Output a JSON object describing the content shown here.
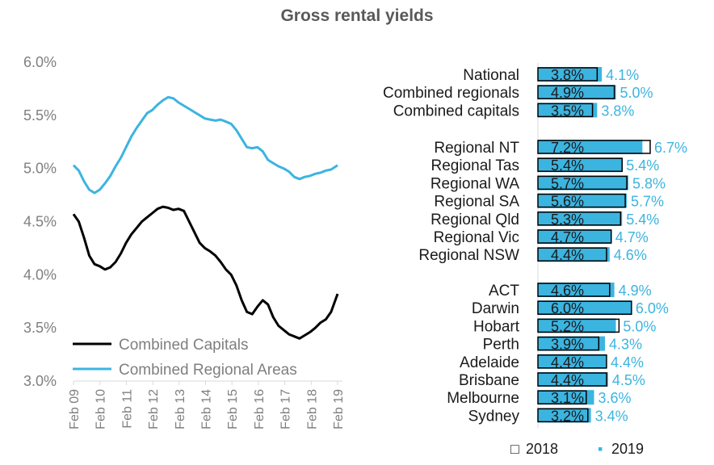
{
  "title": "Gross rental yields",
  "chart_data": [
    {
      "type": "line",
      "y_ticks": [
        "6.0%",
        "5.5%",
        "5.0%",
        "4.5%",
        "4.0%",
        "3.5%",
        "3.0%"
      ],
      "ylim": [
        3.0,
        6.0
      ],
      "x_ticks": [
        "Feb 09",
        "Feb 10",
        "Feb 11",
        "Feb 12",
        "Feb 13",
        "Feb 14",
        "Feb 15",
        "Feb 16",
        "Feb 17",
        "Feb 18",
        "Feb 19"
      ],
      "xlim": [
        2009.0,
        2019.05
      ],
      "colors": {
        "capitals": "#000000",
        "regional": "#3cb4e0"
      },
      "series": [
        {
          "name": "Combined Capitals",
          "color_key": "capitals",
          "points": [
            [
              2009.0,
              4.57
            ],
            [
              2009.2,
              4.5
            ],
            [
              2009.4,
              4.35
            ],
            [
              2009.6,
              4.18
            ],
            [
              2009.8,
              4.1
            ],
            [
              2010.0,
              4.08
            ],
            [
              2010.2,
              4.05
            ],
            [
              2010.4,
              4.07
            ],
            [
              2010.6,
              4.12
            ],
            [
              2010.8,
              4.2
            ],
            [
              2011.0,
              4.3
            ],
            [
              2011.2,
              4.38
            ],
            [
              2011.4,
              4.44
            ],
            [
              2011.6,
              4.5
            ],
            [
              2011.8,
              4.54
            ],
            [
              2012.0,
              4.58
            ],
            [
              2012.2,
              4.62
            ],
            [
              2012.4,
              4.64
            ],
            [
              2012.6,
              4.63
            ],
            [
              2012.8,
              4.61
            ],
            [
              2013.0,
              4.62
            ],
            [
              2013.2,
              4.6
            ],
            [
              2013.4,
              4.5
            ],
            [
              2013.6,
              4.4
            ],
            [
              2013.8,
              4.3
            ],
            [
              2014.0,
              4.25
            ],
            [
              2014.2,
              4.22
            ],
            [
              2014.4,
              4.18
            ],
            [
              2014.6,
              4.12
            ],
            [
              2014.8,
              4.05
            ],
            [
              2015.0,
              4.0
            ],
            [
              2015.2,
              3.9
            ],
            [
              2015.4,
              3.76
            ],
            [
              2015.6,
              3.65
            ],
            [
              2015.8,
              3.63
            ],
            [
              2016.0,
              3.7
            ],
            [
              2016.2,
              3.76
            ],
            [
              2016.4,
              3.72
            ],
            [
              2016.6,
              3.6
            ],
            [
              2016.8,
              3.52
            ],
            [
              2017.0,
              3.48
            ],
            [
              2017.2,
              3.44
            ],
            [
              2017.4,
              3.42
            ],
            [
              2017.6,
              3.4
            ],
            [
              2017.8,
              3.43
            ],
            [
              2018.0,
              3.46
            ],
            [
              2018.2,
              3.5
            ],
            [
              2018.4,
              3.55
            ],
            [
              2018.6,
              3.58
            ],
            [
              2018.8,
              3.65
            ],
            [
              2019.05,
              3.82
            ]
          ]
        },
        {
          "name": "Combined Regional Areas",
          "color_key": "regional",
          "points": [
            [
              2009.0,
              5.03
            ],
            [
              2009.2,
              4.98
            ],
            [
              2009.4,
              4.88
            ],
            [
              2009.6,
              4.8
            ],
            [
              2009.8,
              4.77
            ],
            [
              2010.0,
              4.8
            ],
            [
              2010.2,
              4.86
            ],
            [
              2010.4,
              4.93
            ],
            [
              2010.6,
              5.02
            ],
            [
              2010.8,
              5.1
            ],
            [
              2011.0,
              5.2
            ],
            [
              2011.2,
              5.3
            ],
            [
              2011.4,
              5.38
            ],
            [
              2011.6,
              5.45
            ],
            [
              2011.8,
              5.52
            ],
            [
              2012.0,
              5.55
            ],
            [
              2012.2,
              5.6
            ],
            [
              2012.4,
              5.64
            ],
            [
              2012.6,
              5.67
            ],
            [
              2012.8,
              5.66
            ],
            [
              2013.0,
              5.62
            ],
            [
              2013.2,
              5.59
            ],
            [
              2013.4,
              5.56
            ],
            [
              2013.6,
              5.53
            ],
            [
              2013.8,
              5.5
            ],
            [
              2014.0,
              5.47
            ],
            [
              2014.2,
              5.46
            ],
            [
              2014.4,
              5.45
            ],
            [
              2014.6,
              5.46
            ],
            [
              2014.8,
              5.44
            ],
            [
              2015.0,
              5.42
            ],
            [
              2015.2,
              5.36
            ],
            [
              2015.4,
              5.28
            ],
            [
              2015.6,
              5.2
            ],
            [
              2015.8,
              5.19
            ],
            [
              2016.0,
              5.2
            ],
            [
              2016.2,
              5.16
            ],
            [
              2016.4,
              5.08
            ],
            [
              2016.6,
              5.05
            ],
            [
              2016.8,
              5.02
            ],
            [
              2017.0,
              5.0
            ],
            [
              2017.2,
              4.97
            ],
            [
              2017.4,
              4.92
            ],
            [
              2017.6,
              4.9
            ],
            [
              2017.8,
              4.92
            ],
            [
              2018.0,
              4.93
            ],
            [
              2018.2,
              4.95
            ],
            [
              2018.4,
              4.96
            ],
            [
              2018.6,
              4.98
            ],
            [
              2018.8,
              4.99
            ],
            [
              2019.05,
              5.03
            ]
          ]
        }
      ]
    },
    {
      "type": "bar",
      "orientation": "horizontal",
      "series_names": [
        "2018",
        "2019"
      ],
      "legend_marks": [
        "□",
        "▪"
      ],
      "colors": {
        "2018_fill": "#ffffff",
        "2019_fill": "#3cb4e0",
        "border": "#000000"
      },
      "xlim": [
        0,
        7.2
      ],
      "groups": [
        [
          {
            "label": "National",
            "v2018": 3.8,
            "v2019": 4.1,
            "t2018": "3.8%",
            "t2019": "4.1%"
          },
          {
            "label": "Combined regionals",
            "v2018": 4.9,
            "v2019": 5.0,
            "t2018": "4.9%",
            "t2019": "5.0%"
          },
          {
            "label": "Combined capitals",
            "v2018": 3.5,
            "v2019": 3.8,
            "t2018": "3.5%",
            "t2019": "3.8%"
          }
        ],
        [
          {
            "label": "Regional NT",
            "v2018": 7.2,
            "v2019": 6.7,
            "t2018": "7.2%",
            "t2019": "6.7%"
          },
          {
            "label": "Regional Tas",
            "v2018": 5.4,
            "v2019": 5.4,
            "t2018": "5.4%",
            "t2019": "5.4%"
          },
          {
            "label": "Regional WA",
            "v2018": 5.7,
            "v2019": 5.8,
            "t2018": "5.7%",
            "t2019": "5.8%"
          },
          {
            "label": "Regional SA",
            "v2018": 5.6,
            "v2019": 5.7,
            "t2018": "5.6%",
            "t2019": "5.7%"
          },
          {
            "label": "Regional Qld",
            "v2018": 5.3,
            "v2019": 5.4,
            "t2018": "5.3%",
            "t2019": "5.4%"
          },
          {
            "label": "Regional Vic",
            "v2018": 4.7,
            "v2019": 4.7,
            "t2018": "4.7%",
            "t2019": "4.7%"
          },
          {
            "label": "Regional NSW",
            "v2018": 4.4,
            "v2019": 4.6,
            "t2018": "4.4%",
            "t2019": "4.6%"
          }
        ],
        [
          {
            "label": "ACT",
            "v2018": 4.6,
            "v2019": 4.9,
            "t2018": "4.6%",
            "t2019": "4.9%"
          },
          {
            "label": "Darwin",
            "v2018": 6.0,
            "v2019": 6.0,
            "t2018": "6.0%",
            "t2019": "6.0%"
          },
          {
            "label": "Hobart",
            "v2018": 5.2,
            "v2019": 5.0,
            "t2018": "5.2%",
            "t2019": "5.0%"
          },
          {
            "label": "Perth",
            "v2018": 3.9,
            "v2019": 4.3,
            "t2018": "3.9%",
            "t2019": "4.3%"
          },
          {
            "label": "Adelaide",
            "v2018": 4.4,
            "v2019": 4.4,
            "t2018": "4.4%",
            "t2019": "4.4%"
          },
          {
            "label": "Brisbane",
            "v2018": 4.4,
            "v2019": 4.5,
            "t2018": "4.4%",
            "t2019": "4.5%"
          },
          {
            "label": "Melbourne",
            "v2018": 3.1,
            "v2019": 3.6,
            "t2018": "3.1%",
            "t2019": "3.6%"
          },
          {
            "label": "Sydney",
            "v2018": 3.2,
            "v2019": 3.4,
            "t2018": "3.2%",
            "t2019": "3.4%"
          }
        ]
      ]
    }
  ]
}
